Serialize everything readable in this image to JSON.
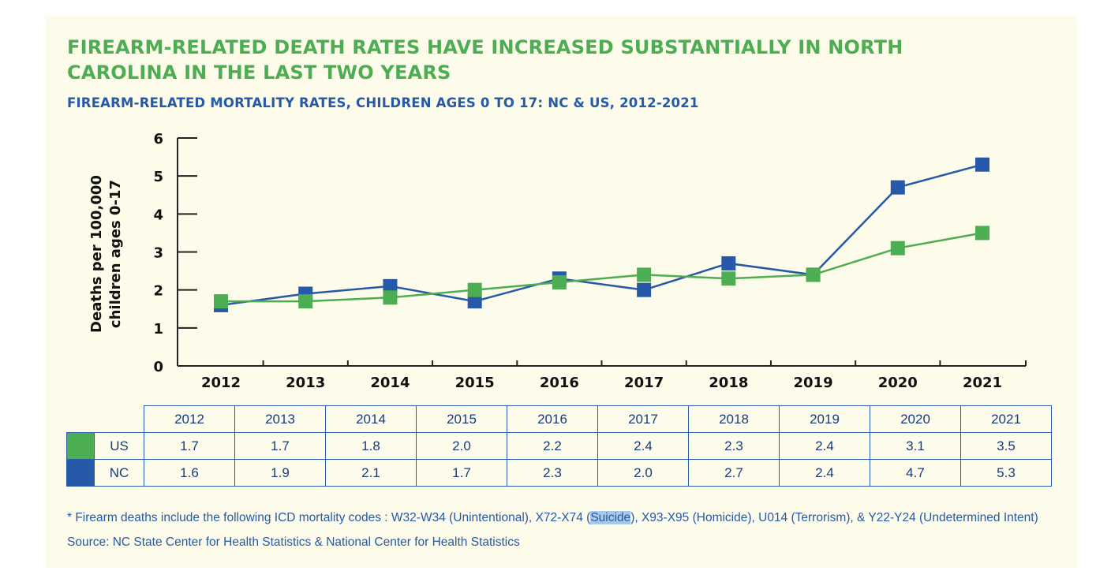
{
  "title": "FIREARM-RELATED DEATH RATES HAVE INCREASED SUBSTANTIALLY IN NORTH CAROLINA IN THE LAST TWO YEARS",
  "subtitle": "FIREARM-RELATED MORTALITY RATES, CHILDREN AGES 0 TO 17: NC & US, 2012-2021",
  "colors": {
    "us": "#4cad52",
    "nc": "#2659a7",
    "title": "#4cad52",
    "accent": "#2659a7",
    "background": "#fdfbe9"
  },
  "chart_data": {
    "type": "line",
    "title": "FIREARM-RELATED MORTALITY RATES, CHILDREN AGES 0 TO 17: NC & US, 2012-2021",
    "xlabel": "",
    "ylabel_line1": "Deaths per 100,000",
    "ylabel_line2": "children ages 0-17",
    "ylim": [
      0,
      6
    ],
    "yticks": [
      0,
      1,
      2,
      3,
      4,
      5,
      6
    ],
    "categories": [
      "2012",
      "2013",
      "2014",
      "2015",
      "2016",
      "2017",
      "2018",
      "2019",
      "2020",
      "2021"
    ],
    "grid": false,
    "series": [
      {
        "name": "US",
        "color": "#4cad52",
        "values": [
          1.7,
          1.7,
          1.8,
          2.0,
          2.2,
          2.4,
          2.3,
          2.4,
          3.1,
          3.5
        ]
      },
      {
        "name": "NC",
        "color": "#2659a7",
        "values": [
          1.6,
          1.9,
          2.1,
          1.7,
          2.3,
          2.0,
          2.7,
          2.4,
          4.7,
          5.3
        ]
      }
    ]
  },
  "table": {
    "years": [
      "2012",
      "2013",
      "2014",
      "2015",
      "2016",
      "2017",
      "2018",
      "2019",
      "2020",
      "2021"
    ],
    "rows": [
      {
        "label": "US",
        "color": "#4cad52",
        "values": [
          "1.7",
          "1.7",
          "1.8",
          "2.0",
          "2.2",
          "2.4",
          "2.3",
          "2.4",
          "3.1",
          "3.5"
        ]
      },
      {
        "label": "NC",
        "color": "#2659a7",
        "values": [
          "1.6",
          "1.9",
          "2.1",
          "1.7",
          "2.3",
          "2.0",
          "2.7",
          "2.4",
          "4.7",
          "5.3"
        ]
      }
    ]
  },
  "footnote": {
    "before": "* Firearm deaths include the following ICD mortality codes : W32-W34 (Unintentional), X72-X74 (",
    "highlight": "Suicide",
    "after": "), X93-X95 (Homicide), U014 (Terrorism), & Y22-Y24 (Undetermined Intent)"
  },
  "source": "Source: NC State Center for Health Statistics & National Center for Health Statistics"
}
